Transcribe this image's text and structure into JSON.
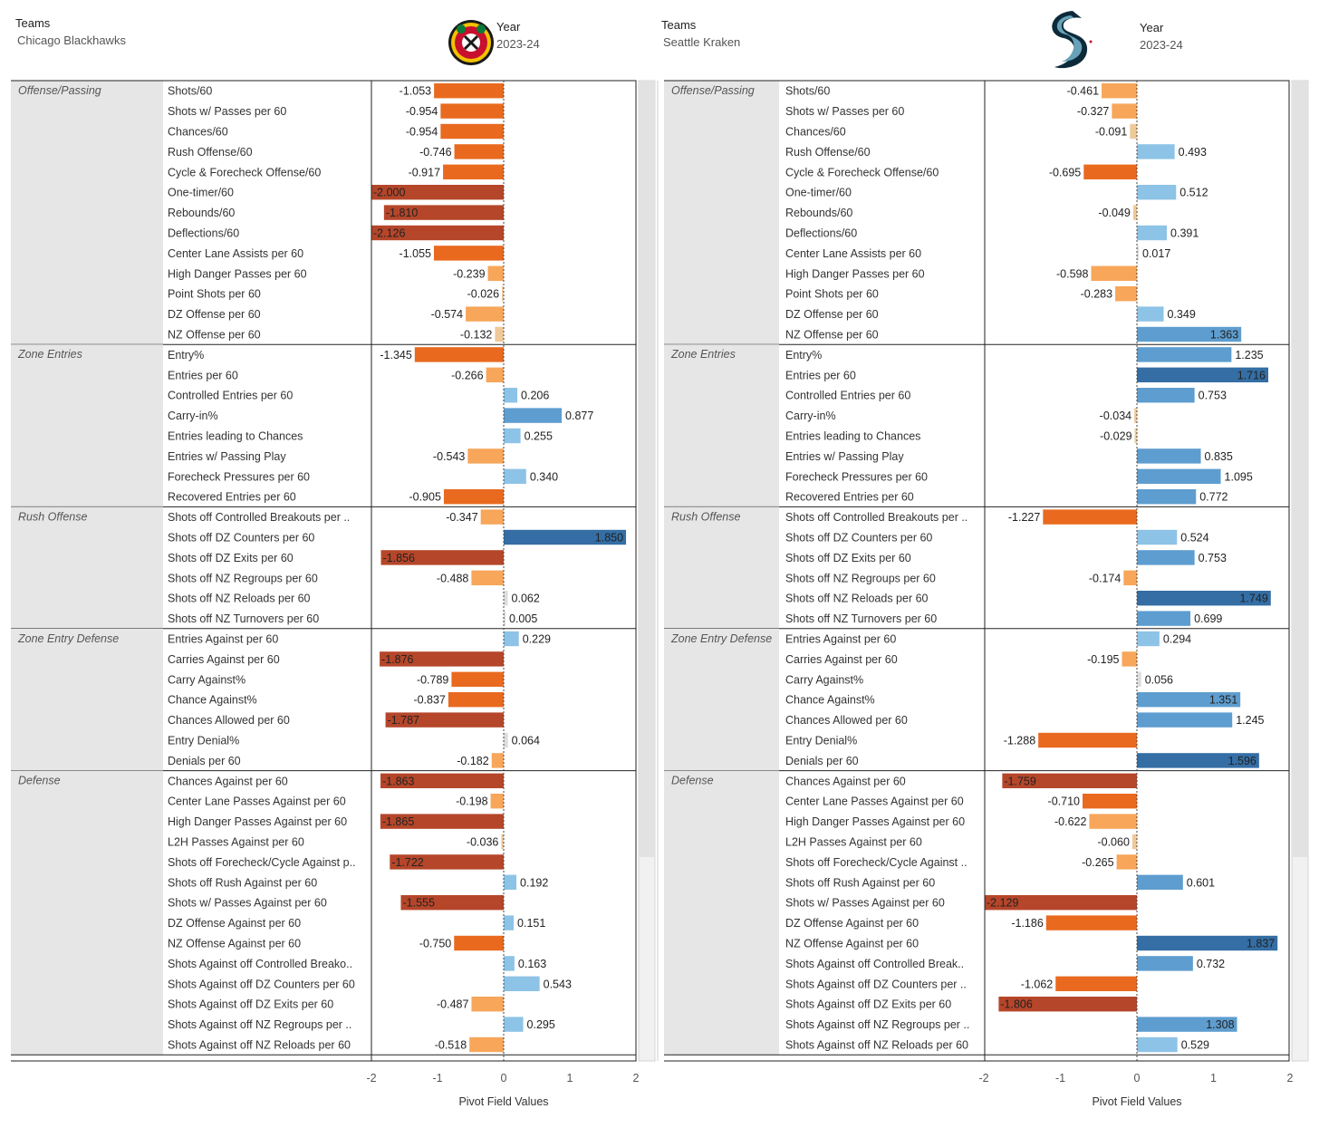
{
  "filters": {
    "teams_label": "Teams",
    "year_label": "Year",
    "left_team": "Chicago Blackhawks",
    "right_team": "Seattle Kraken",
    "year": "2023-24"
  },
  "axis": {
    "title": "Pivot Field Values",
    "ticks": [
      -2,
      -1,
      0,
      1,
      2
    ]
  },
  "colors": {
    "neg_strong": "#b5462a",
    "neg_mid": "#e96a1f",
    "neg_light": "#f7a65a",
    "neg_pale": "#f0c999",
    "neutral": "#dddddd",
    "pos_pale": "#b8d8ee",
    "pos_light": "#8dc3e6",
    "pos_mid": "#5e9dcf",
    "pos_strong": "#346ea4",
    "group_bg": "#e6e6e6"
  },
  "chart_data": [
    {
      "type": "bar",
      "orientation": "horizontal",
      "team": "Chicago Blackhawks",
      "year": "2023-24",
      "xlabel": "Pivot Field Values",
      "xlim": [
        -2,
        2
      ],
      "groups": [
        {
          "name": "Offense/Passing",
          "metrics": [
            {
              "label": "Shots/60",
              "value": -1.053
            },
            {
              "label": "Shots w/ Passes per 60",
              "value": -0.954
            },
            {
              "label": "Chances/60",
              "value": -0.954
            },
            {
              "label": "Rush Offense/60",
              "value": -0.746
            },
            {
              "label": "Cycle & Forecheck Offense/60",
              "value": -0.917
            },
            {
              "label": "One-timer/60",
              "value": -2.0
            },
            {
              "label": "Rebounds/60",
              "value": -1.81
            },
            {
              "label": "Deflections/60",
              "value": -2.126
            },
            {
              "label": "Center Lane Assists per 60",
              "value": -1.055
            },
            {
              "label": "High Danger Passes per 60",
              "value": -0.239
            },
            {
              "label": "Point Shots per 60",
              "value": -0.026
            },
            {
              "label": "DZ Offense per 60",
              "value": -0.574
            },
            {
              "label": "NZ Offense per 60",
              "value": -0.132
            }
          ]
        },
        {
          "name": "Zone Entries",
          "metrics": [
            {
              "label": "Entry%",
              "value": -1.345
            },
            {
              "label": "Entries per 60",
              "value": -0.266
            },
            {
              "label": "Controlled Entries per 60",
              "value": 0.206
            },
            {
              "label": "Carry-in%",
              "value": 0.877
            },
            {
              "label": "Entries leading to Chances",
              "value": 0.255
            },
            {
              "label": "Entries w/ Passing Play",
              "value": -0.543
            },
            {
              "label": "Forecheck Pressures per 60",
              "value": 0.34
            },
            {
              "label": "Recovered Entries per 60",
              "value": -0.905
            }
          ]
        },
        {
          "name": "Rush Offense",
          "metrics": [
            {
              "label": "Shots off Controlled Breakouts per ..",
              "value": -0.347
            },
            {
              "label": "Shots off DZ Counters per 60",
              "value": 1.85
            },
            {
              "label": "Shots off DZ Exits per 60",
              "value": -1.856
            },
            {
              "label": "Shots off NZ Regroups per 60",
              "value": -0.488
            },
            {
              "label": "Shots off NZ Reloads per 60",
              "value": 0.062
            },
            {
              "label": "Shots off NZ Turnovers per 60",
              "value": 0.005
            }
          ]
        },
        {
          "name": "Zone Entry Defense",
          "metrics": [
            {
              "label": "Entries Against per 60",
              "value": 0.229
            },
            {
              "label": "Carries Against per 60",
              "value": -1.876
            },
            {
              "label": "Carry Against%",
              "value": -0.789
            },
            {
              "label": "Chance Against%",
              "value": -0.837
            },
            {
              "label": "Chances Allowed per 60",
              "value": -1.787
            },
            {
              "label": "Entry Denial%",
              "value": 0.064
            },
            {
              "label": "Denials per 60",
              "value": -0.182
            }
          ]
        },
        {
          "name": "Defense",
          "metrics": [
            {
              "label": "Chances Against per 60",
              "value": -1.863
            },
            {
              "label": "Center Lane Passes Against per 60",
              "value": -0.198
            },
            {
              "label": "High Danger Passes Against per 60",
              "value": -1.865
            },
            {
              "label": "L2H Passes Against per 60",
              "value": -0.036
            },
            {
              "label": "Shots off Forecheck/Cycle Against p..",
              "value": -1.722
            },
            {
              "label": "Shots off Rush Against per 60",
              "value": 0.192
            },
            {
              "label": "Shots w/ Passes Against per 60",
              "value": -1.555
            },
            {
              "label": "DZ Offense Against per 60",
              "value": 0.151
            },
            {
              "label": "NZ Offense Against per 60",
              "value": -0.75
            },
            {
              "label": "Shots Against off Controlled Breako..",
              "value": 0.163
            },
            {
              "label": "Shots Against off DZ Counters per 60",
              "value": 0.543
            },
            {
              "label": "Shots Against off DZ Exits per 60",
              "value": -0.487
            },
            {
              "label": "Shots Against off NZ Regroups per ..",
              "value": 0.295
            },
            {
              "label": "Shots Against off NZ Reloads per 60",
              "value": -0.518
            }
          ]
        }
      ]
    },
    {
      "type": "bar",
      "orientation": "horizontal",
      "team": "Seattle Kraken",
      "year": "2023-24",
      "xlabel": "Pivot Field Values",
      "xlim": [
        -2,
        2
      ],
      "groups": [
        {
          "name": "Offense/Passing",
          "metrics": [
            {
              "label": "Shots/60",
              "value": -0.461
            },
            {
              "label": "Shots w/ Passes per 60",
              "value": -0.327
            },
            {
              "label": "Chances/60",
              "value": -0.091
            },
            {
              "label": "Rush Offense/60",
              "value": 0.493
            },
            {
              "label": "Cycle & Forecheck Offense/60",
              "value": -0.695
            },
            {
              "label": "One-timer/60",
              "value": 0.512
            },
            {
              "label": "Rebounds/60",
              "value": -0.049
            },
            {
              "label": "Deflections/60",
              "value": 0.391
            },
            {
              "label": "Center Lane Assists per 60",
              "value": 0.017
            },
            {
              "label": "High Danger Passes per 60",
              "value": -0.598
            },
            {
              "label": "Point Shots per 60",
              "value": -0.283
            },
            {
              "label": "DZ Offense per 60",
              "value": 0.349
            },
            {
              "label": "NZ Offense per 60",
              "value": 1.363
            }
          ]
        },
        {
          "name": "Zone Entries",
          "metrics": [
            {
              "label": "Entry%",
              "value": 1.235
            },
            {
              "label": "Entries per 60",
              "value": 1.716
            },
            {
              "label": "Controlled Entries per 60",
              "value": 0.753
            },
            {
              "label": "Carry-in%",
              "value": -0.034
            },
            {
              "label": "Entries leading to Chances",
              "value": -0.029
            },
            {
              "label": "Entries w/ Passing Play",
              "value": 0.835
            },
            {
              "label": "Forecheck Pressures per 60",
              "value": 1.095
            },
            {
              "label": "Recovered Entries per 60",
              "value": 0.772
            }
          ]
        },
        {
          "name": "Rush Offense",
          "metrics": [
            {
              "label": "Shots off Controlled Breakouts per ..",
              "value": -1.227
            },
            {
              "label": "Shots off DZ Counters per 60",
              "value": 0.524
            },
            {
              "label": "Shots off DZ Exits per 60",
              "value": 0.753
            },
            {
              "label": "Shots off NZ Regroups per 60",
              "value": -0.174
            },
            {
              "label": "Shots off NZ Reloads per 60",
              "value": 1.749
            },
            {
              "label": "Shots off NZ Turnovers per 60",
              "value": 0.699
            }
          ]
        },
        {
          "name": "Zone Entry Defense",
          "metrics": [
            {
              "label": "Entries Against per 60",
              "value": 0.294
            },
            {
              "label": "Carries Against per 60",
              "value": -0.195
            },
            {
              "label": "Carry Against%",
              "value": 0.056
            },
            {
              "label": "Chance Against%",
              "value": 1.351
            },
            {
              "label": "Chances Allowed per 60",
              "value": 1.245
            },
            {
              "label": "Entry Denial%",
              "value": -1.288
            },
            {
              "label": "Denials per 60",
              "value": 1.596
            }
          ]
        },
        {
          "name": "Defense",
          "metrics": [
            {
              "label": "Chances Against per 60",
              "value": -1.759
            },
            {
              "label": "Center Lane Passes Against per 60",
              "value": -0.71
            },
            {
              "label": "High Danger Passes Against per 60",
              "value": -0.622
            },
            {
              "label": "L2H Passes Against per 60",
              "value": -0.06
            },
            {
              "label": "Shots off Forecheck/Cycle Against ..",
              "value": -0.265
            },
            {
              "label": "Shots off Rush Against per 60",
              "value": 0.601
            },
            {
              "label": "Shots w/ Passes Against per 60",
              "value": -2.129
            },
            {
              "label": "DZ Offense Against per 60",
              "value": -1.186
            },
            {
              "label": "NZ Offense Against per 60",
              "value": 1.837
            },
            {
              "label": "Shots Against off Controlled Break..",
              "value": 0.732
            },
            {
              "label": "Shots Against off DZ Counters per ..",
              "value": -1.062
            },
            {
              "label": "Shots Against off DZ Exits per 60",
              "value": -1.806
            },
            {
              "label": "Shots Against off NZ Regroups per ..",
              "value": 1.308
            },
            {
              "label": "Shots Against off NZ Reloads per 60",
              "value": 0.529
            }
          ]
        }
      ]
    }
  ]
}
